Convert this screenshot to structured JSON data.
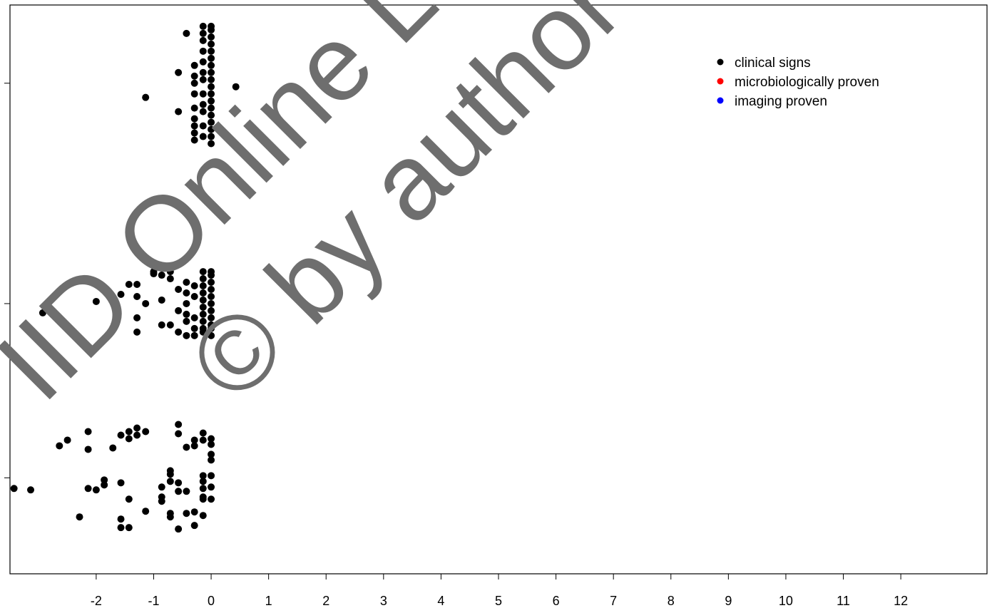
{
  "chart_data": {
    "type": "scatter",
    "xlim": [
      -3.5,
      13.5
    ],
    "ylim": [
      0,
      8
    ],
    "x_ticks": [
      "-2",
      "-1",
      "0",
      "1",
      "2",
      "3",
      "4",
      "5",
      "6",
      "7",
      "8",
      "9",
      "10",
      "11",
      "12"
    ],
    "y_tick_count": 3,
    "grid": false,
    "legend_position": "top-right",
    "series": [
      {
        "name": "clinical signs",
        "color": "#000000",
        "groups": [
          {
            "x": [
              -1.14,
              -0.57,
              -0.57,
              -0.43,
              0.43,
              -0.29,
              -0.29,
              -0.29,
              -0.29,
              -0.29,
              -0.29,
              -0.29,
              -0.29,
              -0.29,
              -0.14,
              -0.14,
              -0.14,
              -0.14,
              -0.14,
              -0.14,
              -0.14,
              -0.14,
              -0.14,
              -0.14,
              -0.14,
              -0.14,
              0,
              0,
              0,
              0,
              0,
              0,
              0,
              0,
              0,
              0,
              0,
              0,
              0,
              0,
              0,
              0,
              0,
              0
            ],
            "y": [
              6.7,
              6.5,
              7.05,
              7.6,
              6.85,
              6.2,
              6.4,
              6.55,
              6.75,
              6.9,
              7.0,
              7.15,
              6.1,
              6.3,
              6.15,
              6.3,
              6.5,
              6.6,
              6.75,
              6.95,
              7.05,
              7.2,
              7.35,
              7.5,
              7.6,
              7.7,
              6.05,
              6.15,
              6.25,
              6.35,
              6.45,
              6.55,
              6.65,
              6.75,
              6.85,
              6.95,
              7.05,
              7.15,
              7.25,
              7.35,
              7.45,
              7.55,
              7.65,
              7.7
            ]
          },
          {
            "x": [
              -2.93,
              -2.0,
              -1.71,
              -1.57,
              -1.43,
              -1.29,
              -1.29,
              -1.29,
              -1.29,
              -1.14,
              -1.0,
              -1.0,
              -0.86,
              -0.86,
              -0.86,
              -0.71,
              -0.71,
              -0.71,
              -0.57,
              -0.57,
              -0.57,
              -0.43,
              -0.43,
              -0.43,
              -0.43,
              -0.43,
              -0.43,
              -0.29,
              -0.29,
              -0.29,
              -0.29,
              -0.29,
              -0.14,
              -0.14,
              -0.14,
              -0.14,
              -0.14,
              -0.14,
              -0.14,
              -0.14,
              -0.14,
              -0.14,
              0,
              0,
              0,
              0,
              0,
              0,
              0,
              0,
              0,
              0,
              0
            ],
            "y": [
              3.67,
              3.83,
              3.45,
              3.93,
              4.07,
              3.6,
              3.9,
              4.07,
              3.4,
              3.8,
              4.22,
              4.25,
              4.2,
              3.85,
              3.5,
              4.25,
              4.15,
              3.5,
              4.0,
              3.7,
              3.4,
              4.1,
              3.95,
              3.8,
              3.65,
              3.55,
              3.35,
              4.05,
              3.9,
              3.6,
              3.45,
              3.35,
              4.25,
              4.15,
              4.05,
              3.95,
              3.85,
              3.75,
              3.65,
              3.55,
              3.45,
              3.4,
              4.25,
              4.2,
              4.1,
              4.0,
              3.9,
              3.8,
              3.7,
              3.6,
              3.5,
              3.45,
              3.35
            ]
          },
          {
            "x": [
              -3.43,
              -3.14,
              -2.64,
              -2.5,
              -2.29,
              -2.14,
              -2.14,
              -2.14,
              -2.0,
              -1.86,
              -1.86,
              -1.71,
              -1.57,
              -1.57,
              -1.57,
              -1.57,
              -1.43,
              -1.43,
              -1.43,
              -1.43,
              -1.29,
              -1.29,
              -1.14,
              -1.14,
              -0.86,
              -0.86,
              -0.86,
              -0.71,
              -0.71,
              -0.71,
              -0.71,
              -0.71,
              -0.57,
              -0.57,
              -0.57,
              -0.57,
              -0.57,
              -0.43,
              -0.43,
              -0.43,
              -0.29,
              -0.29,
              -0.29,
              -0.29,
              -0.14,
              -0.14,
              -0.14,
              -0.14,
              -0.14,
              -0.14,
              -0.14,
              -0.14,
              0,
              0,
              0,
              0,
              0,
              0,
              0
            ],
            "y": [
              1.2,
              1.18,
              1.8,
              1.88,
              0.8,
              1.75,
              1.2,
              2.0,
              1.18,
              1.25,
              1.32,
              1.77,
              0.77,
              0.65,
              1.28,
              1.95,
              0.65,
              1.05,
              1.9,
              2.0,
              2.05,
              1.95,
              0.88,
              2.0,
              1.22,
              1.08,
              1.02,
              1.45,
              1.4,
              1.3,
              0.85,
              0.8,
              2.1,
              1.97,
              1.28,
              1.16,
              0.63,
              1.78,
              1.16,
              0.85,
              1.88,
              1.8,
              0.87,
              0.68,
              1.98,
              1.88,
              1.38,
              1.3,
              1.2,
              1.08,
              1.05,
              0.82,
              1.9,
              1.82,
              1.6,
              1.38,
              1.22,
              1.05,
              1.68
            ]
          }
        ]
      },
      {
        "name": "microbiologically proven",
        "color": "#ff0000",
        "groups": []
      },
      {
        "name": "imaging proven",
        "color": "#0000ff",
        "groups": []
      }
    ]
  },
  "watermark": {
    "line1": "IID Online Lecture",
    "line2": "© by author"
  }
}
